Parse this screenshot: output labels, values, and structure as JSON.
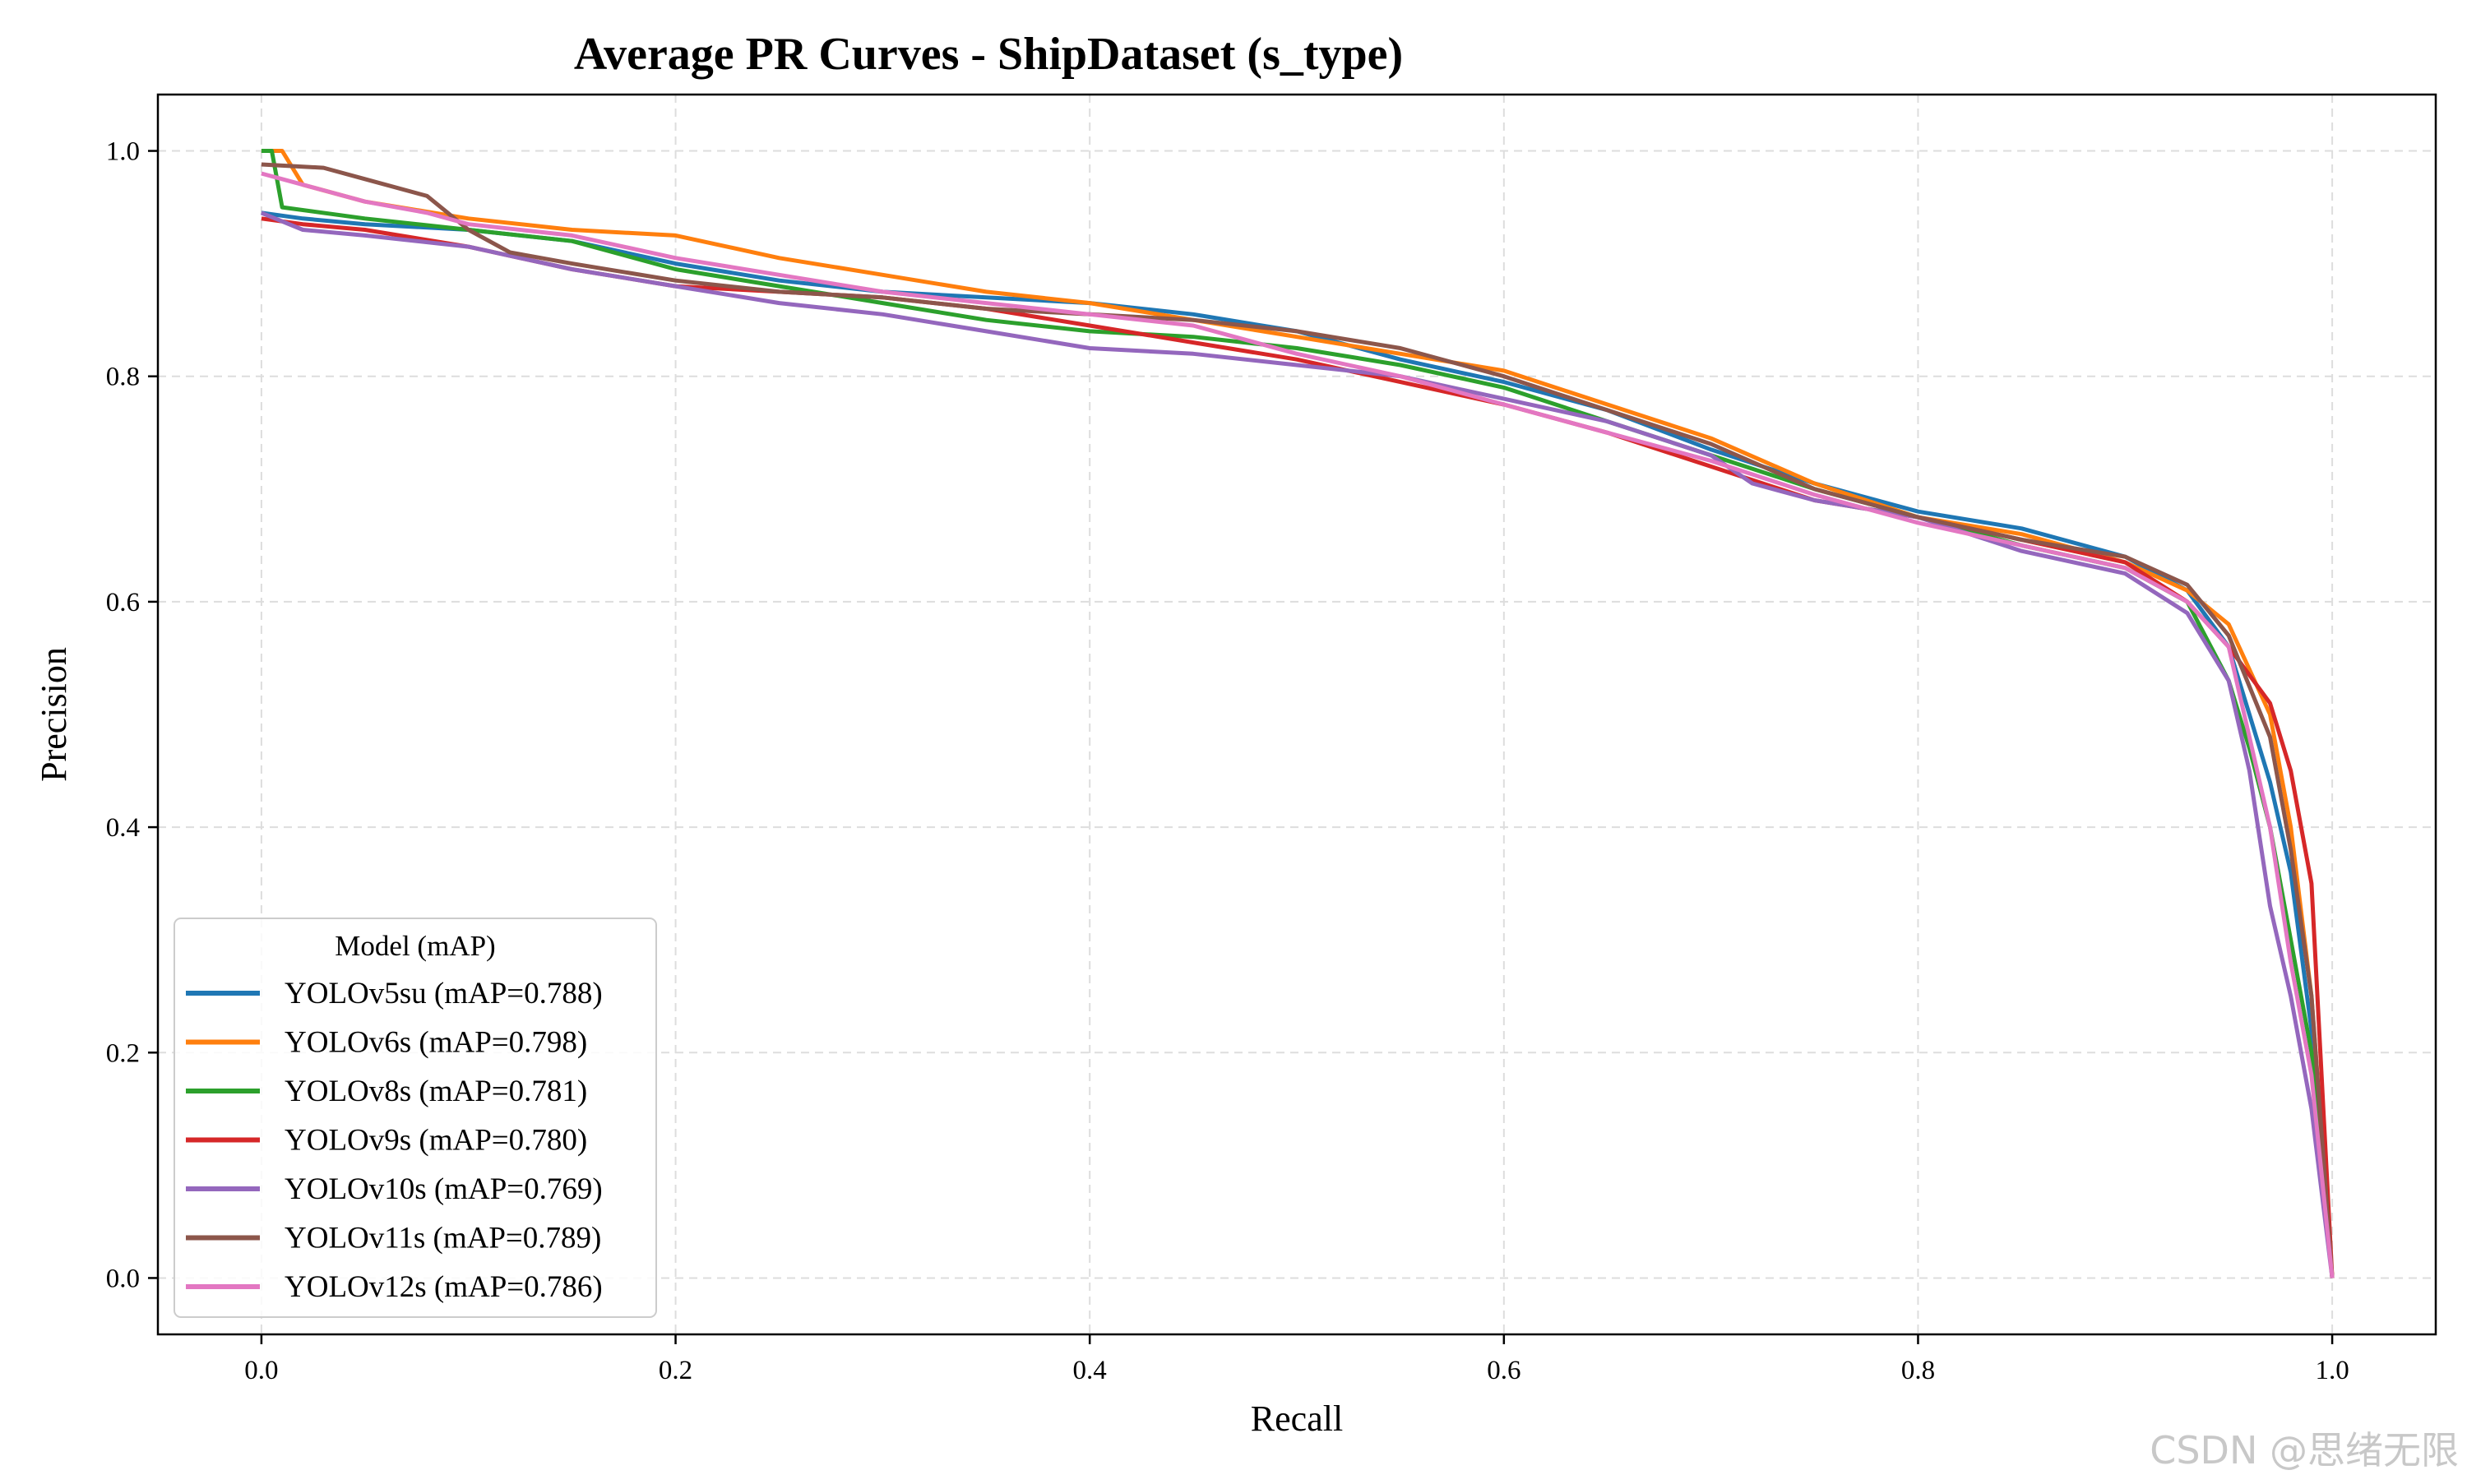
{
  "watermark": "CSDN @思绪无限",
  "chart_data": {
    "type": "line",
    "title": "Average PR Curves - ShipDataset (s_type)",
    "xlabel": "Recall",
    "ylabel": "Precision",
    "xlim": [
      -0.05,
      1.05
    ],
    "ylim": [
      -0.05,
      1.05
    ],
    "xticks": [
      0.0,
      0.2,
      0.4,
      0.6,
      0.8,
      1.0
    ],
    "yticks": [
      0.0,
      0.2,
      0.4,
      0.6,
      0.8,
      1.0
    ],
    "xtick_labels": [
      "0.0",
      "0.2",
      "0.4",
      "0.6",
      "0.8",
      "1.0"
    ],
    "ytick_labels": [
      "0.0",
      "0.2",
      "0.4",
      "0.6",
      "0.8",
      "1.0"
    ],
    "grid": true,
    "legend": {
      "title": "Model (mAP)",
      "position": "lower-left"
    },
    "series": [
      {
        "name": "YOLOv5su (mAP=0.788)",
        "color": "#1f77b4",
        "x": [
          0.0,
          0.02,
          0.05,
          0.1,
          0.15,
          0.2,
          0.25,
          0.3,
          0.35,
          0.4,
          0.45,
          0.5,
          0.55,
          0.6,
          0.65,
          0.7,
          0.75,
          0.8,
          0.85,
          0.9,
          0.93,
          0.95,
          0.96,
          0.97,
          0.98,
          0.99,
          1.0
        ],
        "y": [
          0.945,
          0.94,
          0.935,
          0.93,
          0.92,
          0.9,
          0.885,
          0.875,
          0.87,
          0.865,
          0.855,
          0.84,
          0.815,
          0.795,
          0.77,
          0.735,
          0.705,
          0.68,
          0.665,
          0.64,
          0.61,
          0.56,
          0.5,
          0.44,
          0.36,
          0.22,
          0.0
        ]
      },
      {
        "name": "YOLOv6s (mAP=0.798)",
        "color": "#ff7f0e",
        "x": [
          0.0,
          0.01,
          0.02,
          0.05,
          0.1,
          0.15,
          0.2,
          0.25,
          0.3,
          0.35,
          0.4,
          0.45,
          0.5,
          0.55,
          0.6,
          0.65,
          0.7,
          0.75,
          0.8,
          0.85,
          0.9,
          0.93,
          0.95,
          0.97,
          0.98,
          0.99,
          1.0
        ],
        "y": [
          1.0,
          1.0,
          0.97,
          0.955,
          0.94,
          0.93,
          0.925,
          0.905,
          0.89,
          0.875,
          0.865,
          0.85,
          0.835,
          0.82,
          0.805,
          0.775,
          0.745,
          0.705,
          0.675,
          0.66,
          0.635,
          0.61,
          0.58,
          0.5,
          0.4,
          0.25,
          0.0
        ]
      },
      {
        "name": "YOLOv8s (mAP=0.781)",
        "color": "#2ca02c",
        "x": [
          0.0,
          0.005,
          0.01,
          0.05,
          0.1,
          0.15,
          0.2,
          0.25,
          0.3,
          0.35,
          0.4,
          0.45,
          0.5,
          0.55,
          0.6,
          0.65,
          0.7,
          0.75,
          0.8,
          0.85,
          0.9,
          0.93,
          0.95,
          0.96,
          0.97,
          0.98,
          0.99,
          1.0
        ],
        "y": [
          1.0,
          1.0,
          0.95,
          0.94,
          0.93,
          0.92,
          0.895,
          0.88,
          0.865,
          0.85,
          0.84,
          0.835,
          0.825,
          0.81,
          0.79,
          0.76,
          0.73,
          0.7,
          0.675,
          0.65,
          0.63,
          0.6,
          0.53,
          0.47,
          0.4,
          0.3,
          0.2,
          0.0
        ]
      },
      {
        "name": "YOLOv9s (mAP=0.780)",
        "color": "#d62728",
        "x": [
          0.0,
          0.02,
          0.05,
          0.1,
          0.15,
          0.2,
          0.25,
          0.3,
          0.35,
          0.4,
          0.45,
          0.5,
          0.55,
          0.6,
          0.65,
          0.7,
          0.75,
          0.8,
          0.85,
          0.9,
          0.93,
          0.95,
          0.97,
          0.98,
          0.99,
          1.0
        ],
        "y": [
          0.94,
          0.935,
          0.93,
          0.915,
          0.895,
          0.88,
          0.875,
          0.87,
          0.86,
          0.845,
          0.83,
          0.815,
          0.795,
          0.775,
          0.75,
          0.72,
          0.69,
          0.675,
          0.655,
          0.635,
          0.6,
          0.56,
          0.51,
          0.45,
          0.35,
          0.0
        ]
      },
      {
        "name": "YOLOv10s (mAP=0.769)",
        "color": "#9467bd",
        "x": [
          0.0,
          0.02,
          0.05,
          0.1,
          0.15,
          0.2,
          0.25,
          0.3,
          0.35,
          0.4,
          0.45,
          0.5,
          0.55,
          0.6,
          0.65,
          0.7,
          0.72,
          0.75,
          0.8,
          0.85,
          0.9,
          0.93,
          0.95,
          0.96,
          0.97,
          0.98,
          0.99,
          1.0
        ],
        "y": [
          0.945,
          0.93,
          0.925,
          0.915,
          0.895,
          0.88,
          0.865,
          0.855,
          0.84,
          0.825,
          0.82,
          0.81,
          0.8,
          0.78,
          0.76,
          0.73,
          0.705,
          0.69,
          0.675,
          0.645,
          0.625,
          0.59,
          0.53,
          0.45,
          0.33,
          0.25,
          0.15,
          0.0
        ]
      },
      {
        "name": "YOLOv11s (mAP=0.789)",
        "color": "#8c564b",
        "x": [
          0.0,
          0.03,
          0.05,
          0.08,
          0.1,
          0.12,
          0.15,
          0.2,
          0.25,
          0.3,
          0.35,
          0.4,
          0.45,
          0.5,
          0.55,
          0.6,
          0.65,
          0.7,
          0.75,
          0.8,
          0.85,
          0.9,
          0.93,
          0.95,
          0.97,
          0.98,
          0.99,
          1.0
        ],
        "y": [
          0.988,
          0.985,
          0.975,
          0.96,
          0.93,
          0.91,
          0.9,
          0.885,
          0.875,
          0.87,
          0.86,
          0.855,
          0.85,
          0.84,
          0.825,
          0.8,
          0.77,
          0.74,
          0.7,
          0.675,
          0.655,
          0.64,
          0.615,
          0.57,
          0.48,
          0.38,
          0.25,
          0.0
        ]
      },
      {
        "name": "YOLOv12s (mAP=0.786)",
        "color": "#e377c2",
        "x": [
          0.0,
          0.01,
          0.03,
          0.05,
          0.08,
          0.1,
          0.15,
          0.2,
          0.25,
          0.3,
          0.35,
          0.4,
          0.45,
          0.5,
          0.55,
          0.6,
          0.65,
          0.7,
          0.75,
          0.8,
          0.85,
          0.9,
          0.93,
          0.95,
          0.96,
          0.97,
          0.98,
          0.99,
          1.0
        ],
        "y": [
          0.98,
          0.975,
          0.965,
          0.955,
          0.945,
          0.935,
          0.925,
          0.905,
          0.89,
          0.875,
          0.865,
          0.855,
          0.845,
          0.82,
          0.8,
          0.775,
          0.75,
          0.725,
          0.695,
          0.67,
          0.65,
          0.63,
          0.6,
          0.56,
          0.48,
          0.4,
          0.28,
          0.18,
          0.0
        ]
      }
    ]
  }
}
